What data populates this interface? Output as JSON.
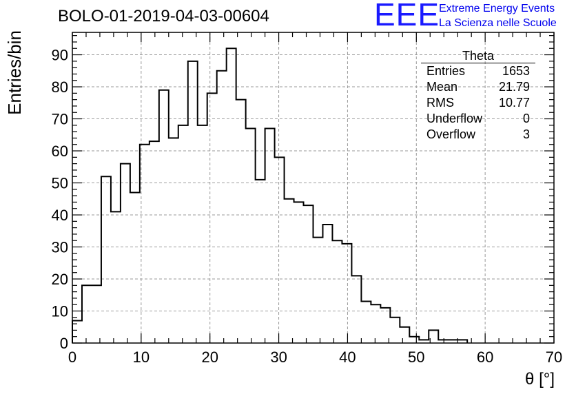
{
  "header": {
    "title": "BOLO-01-2019-04-03-00604",
    "logo_letters": "EEE",
    "logo_line1": "Extreme Energy Events",
    "logo_line2": "La Scienza nelle Scuole"
  },
  "stats_box": {
    "title": "Theta",
    "rows": [
      {
        "label": "Entries",
        "value": "1653"
      },
      {
        "label": "Mean",
        "value": "21.79"
      },
      {
        "label": "RMS",
        "value": "10.77"
      },
      {
        "label": "Underflow",
        "value": "0"
      },
      {
        "label": "Overflow",
        "value": "3"
      }
    ]
  },
  "chart_data": {
    "type": "bar",
    "histogram": true,
    "xlabel": "θ [°]",
    "ylabel": "Entries/bin",
    "xlim": [
      0,
      70
    ],
    "ylim": [
      0,
      97
    ],
    "xticks": [
      0,
      10,
      20,
      30,
      40,
      50,
      60,
      70
    ],
    "yticks": [
      0,
      10,
      20,
      30,
      40,
      50,
      60,
      70,
      80,
      90
    ],
    "grid": true,
    "bin_width": 1.4,
    "bin_start": 0,
    "values": [
      7,
      18,
      18,
      52,
      41,
      56,
      47,
      62,
      63,
      79,
      64,
      68,
      88,
      68,
      78,
      85,
      92,
      76,
      67,
      51,
      67,
      58,
      45,
      44,
      43,
      33,
      37,
      32,
      31,
      21,
      13,
      12,
      11,
      8,
      5,
      2,
      1,
      4,
      1,
      1,
      1
    ]
  }
}
